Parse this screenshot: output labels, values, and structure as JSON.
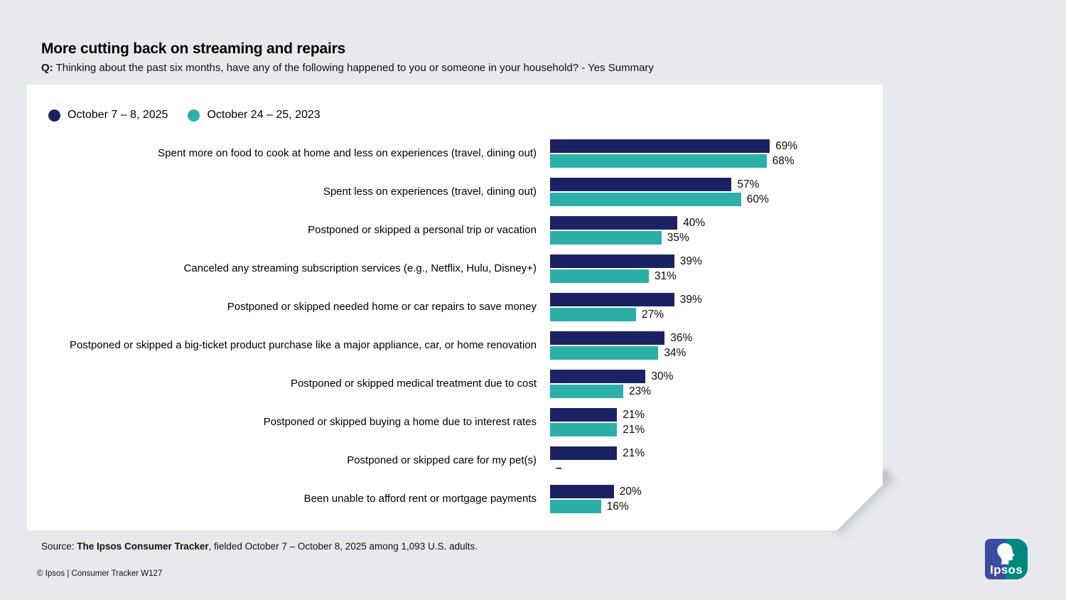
{
  "page": {
    "title": "More cutting back on streaming and repairs",
    "subtitle_prefix": "Q:",
    "subtitle_text": " Thinking about the past six months, have any of the following happened to you or someone in your household? - Yes Summary"
  },
  "legend": [
    {
      "label": "October 7 – 8, 2025",
      "color": "#1B2264"
    },
    {
      "label": "October 24 – 25, 2023",
      "color": "#2BAFA8"
    }
  ],
  "chart_data": {
    "type": "bar",
    "orientation": "horizontal",
    "unit": "percent",
    "xlim": [
      0,
      100
    ],
    "grid": false,
    "legend_position": "top-left",
    "categories": [
      "Spent more on food to cook at home and less on experiences (travel, dining out)",
      "Spent less on experiences (travel, dining out)",
      "Postponed or skipped a personal trip or vacation",
      "Canceled any streaming subscription services (e.g., Netflix, Hulu, Disney+)",
      "Postponed or skipped needed home or car repairs to save money",
      "Postponed or skipped a big-ticket product purchase like a major appliance, car, or home renovation",
      "Postponed or skipped medical treatment due to cost",
      "Postponed or skipped buying a home due to interest rates",
      "Postponed or skipped care for my pet(s)",
      "Been unable to afford rent or mortgage payments"
    ],
    "series": [
      {
        "name": "October 7 – 8, 2025",
        "color": "#1B2264",
        "values": [
          69,
          57,
          40,
          39,
          39,
          36,
          30,
          21,
          21,
          20
        ]
      },
      {
        "name": "October 24 – 25, 2023",
        "color": "#2BAFA8",
        "values": [
          68,
          60,
          35,
          31,
          27,
          34,
          23,
          21,
          null,
          16
        ]
      }
    ],
    "value_labels": [
      [
        "69%",
        "68%"
      ],
      [
        "57%",
        "60%"
      ],
      [
        "40%",
        "35%"
      ],
      [
        "39%",
        "31%"
      ],
      [
        "39%",
        "27%"
      ],
      [
        "36%",
        "34%"
      ],
      [
        "30%",
        "23%"
      ],
      [
        "21%",
        "21%"
      ],
      [
        "21%",
        "–"
      ],
      [
        "20%",
        "16%"
      ]
    ]
  },
  "footer": {
    "source_prefix": "Source: ",
    "source_bold": "The Ipsos Consumer Tracker",
    "source_rest": ", fielded October 7 – October 8, 2025 among 1,093 U.S. adults.",
    "copyright": "© Ipsos | Consumer Tracker W127"
  },
  "logo": {
    "text": "Ipsos",
    "blue": "#3B4CA0",
    "teal": "#00887F"
  }
}
